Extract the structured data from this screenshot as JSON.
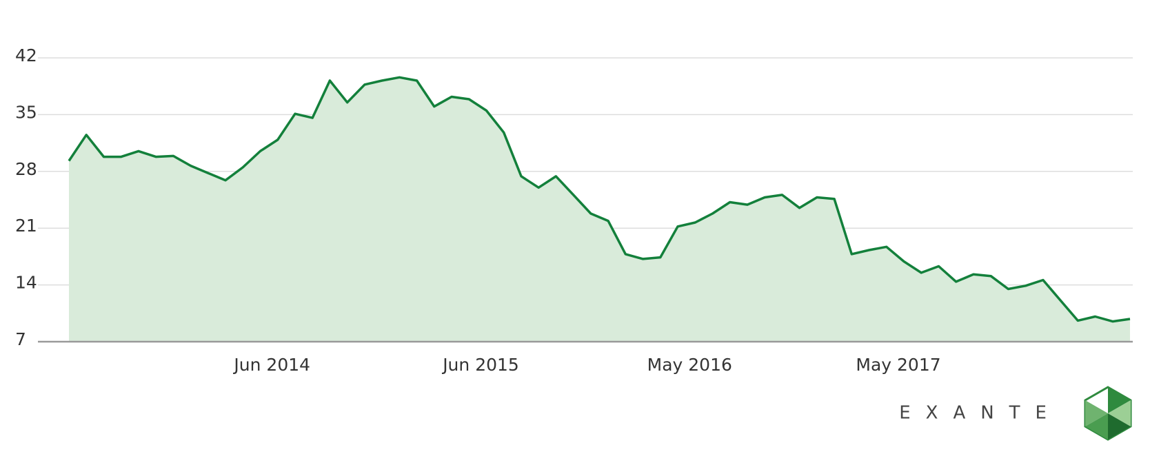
{
  "chart_data": {
    "type": "area",
    "categories": [
      null,
      null,
      null,
      null,
      null,
      null,
      null,
      null,
      null,
      null,
      null,
      null,
      "Jun 2014",
      null,
      null,
      null,
      null,
      null,
      null,
      null,
      null,
      null,
      null,
      null,
      "Jun 2015",
      null,
      null,
      null,
      null,
      null,
      null,
      null,
      null,
      null,
      null,
      null,
      "May 2016",
      null,
      null,
      null,
      null,
      null,
      null,
      null,
      null,
      null,
      null,
      null,
      "May 2017",
      null,
      null,
      null,
      null,
      null,
      null,
      null,
      null,
      null,
      null,
      null,
      null,
      null
    ],
    "values": [
      29.3,
      32.5,
      29.8,
      29.8,
      30.5,
      29.8,
      29.9,
      28.7,
      27.8,
      26.9,
      28.5,
      30.5,
      31.9,
      35.1,
      34.6,
      39.2,
      36.5,
      38.7,
      39.2,
      39.6,
      39.2,
      36.0,
      37.2,
      36.9,
      35.5,
      32.8,
      27.4,
      26.0,
      27.4,
      25.1,
      22.8,
      21.9,
      17.8,
      17.2,
      17.4,
      21.2,
      21.7,
      22.8,
      24.2,
      23.9,
      24.8,
      25.1,
      23.5,
      24.8,
      24.6,
      17.8,
      18.3,
      18.7,
      16.9,
      15.5,
      16.3,
      14.4,
      15.3,
      15.1,
      13.5,
      13.9,
      14.6,
      12.1,
      9.6,
      10.1,
      9.5,
      9.8
    ],
    "color": "#13803b",
    "ylim": [
      7,
      42
    ],
    "yticks": [
      7,
      14,
      21,
      28,
      35,
      42
    ],
    "grid": true
  },
  "brand": "EXANTE"
}
